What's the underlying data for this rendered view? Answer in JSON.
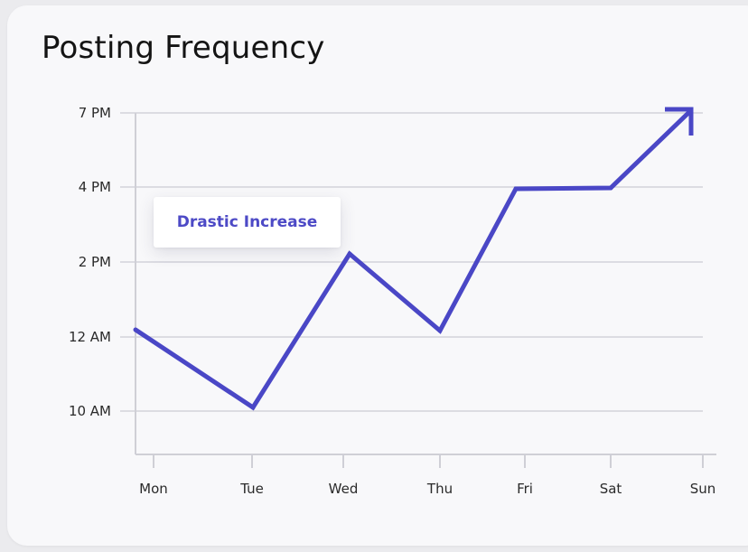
{
  "chart_data": {
    "type": "line",
    "title": "Posting Frequency",
    "categories": [
      "Mon",
      "Tue",
      "Wed",
      "Thu",
      "Fri",
      "Sat",
      "Sun"
    ],
    "y_ticks": [
      "10 AM",
      "12 AM",
      "2 PM",
      "4 PM",
      "7 PM"
    ],
    "series": [
      {
        "values": [
          "12 AM",
          "10 AM",
          "2 PM",
          "12 AM",
          "4 PM",
          "4 PM",
          "7 PM"
        ]
      }
    ],
    "annotation": "Drastic Increase",
    "trend_arrow": true,
    "grid": true,
    "line_color": "#4a47c6",
    "accent_color": "#4d4ac6"
  }
}
